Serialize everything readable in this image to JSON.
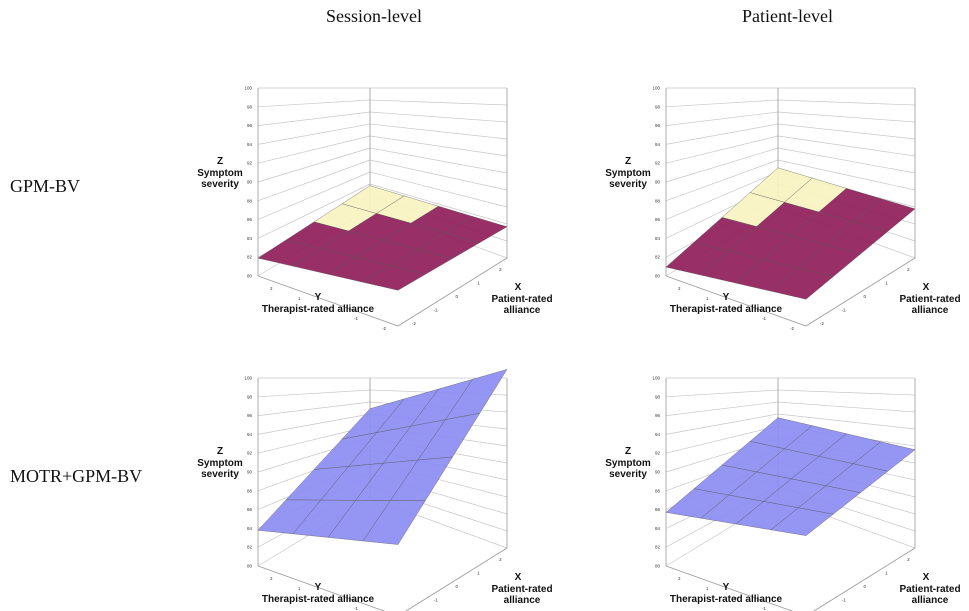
{
  "column_titles": [
    "Session-level",
    "Patient-level"
  ],
  "row_titles": [
    "GPM-BV",
    "MOTR+GPM-BV"
  ],
  "colors": {
    "burgundy": "#8f1e5a",
    "cream": "#f7f3c0",
    "blue": "#8c8cf2",
    "grid": "#c8c8c8"
  },
  "chart_data": [
    {
      "type": "surface",
      "row": "GPM-BV",
      "column": "Session-level",
      "zlabel_letter": "Z",
      "zlabel": [
        "Symptom",
        "severity"
      ],
      "xlabel_letter": "X",
      "xlabel": [
        "Patient-rated",
        "alliance"
      ],
      "ylabel_letter": "Y",
      "ylabel": "Therapist-rated alliance",
      "zlim": [
        80,
        100
      ],
      "ztick_labels": [
        "80",
        "82",
        "84",
        "86",
        "88",
        "90",
        "92",
        "94",
        "96",
        "98",
        "100"
      ],
      "xtick_labels": [
        "-2",
        "-1",
        "0",
        "1",
        "2"
      ],
      "ytick_labels": [
        "2",
        "1",
        "0",
        "-1",
        "-2"
      ],
      "surface_z_corners": {
        "near": 82,
        "right": 84,
        "far": 83.5,
        "left": 82.5
      },
      "coloring": "burgundy-cream"
    },
    {
      "type": "surface",
      "row": "GPM-BV",
      "column": "Patient-level",
      "zlabel_letter": "Z",
      "zlabel": [
        "Symptom",
        "severity"
      ],
      "xlabel_letter": "X",
      "xlabel": [
        "Patient-rated",
        "alliance"
      ],
      "ylabel_letter": "Y",
      "ylabel": "Therapist-rated alliance",
      "zlim": [
        80,
        100
      ],
      "ztick_labels": [
        "80",
        "82",
        "84",
        "86",
        "88",
        "90",
        "92",
        "94",
        "96",
        "98",
        "100"
      ],
      "xtick_labels": [
        "-2",
        "-1",
        "0",
        "1",
        "2"
      ],
      "ytick_labels": [
        "2",
        "1",
        "0",
        "-1",
        "-2"
      ],
      "surface_z_corners": {
        "near": 81,
        "right": 83,
        "far": 85.5,
        "left": 84.5
      },
      "coloring": "burgundy-cream"
    },
    {
      "type": "surface",
      "row": "MOTR+GPM-BV",
      "column": "Session-level",
      "zlabel_letter": "Z",
      "zlabel": [
        "Symptom",
        "severity"
      ],
      "xlabel_letter": "X",
      "xlabel": [
        "Patient-rated",
        "alliance"
      ],
      "ylabel_letter": "Y",
      "ylabel": "Therapist-rated alliance",
      "zlim": [
        80,
        100
      ],
      "ztick_labels": [
        "80",
        "82",
        "84",
        "86",
        "88",
        "90",
        "92",
        "94",
        "96",
        "98",
        "100"
      ],
      "xtick_labels": [
        "-2",
        "-1",
        "0",
        "1",
        "2"
      ],
      "ytick_labels": [
        "2",
        "1",
        "0",
        "-1",
        "-2"
      ],
      "surface_z_corners": {
        "near": 84,
        "right": 88,
        "far": 100,
        "left": 90
      },
      "coloring": "blue"
    },
    {
      "type": "surface",
      "row": "MOTR+GPM-BV",
      "column": "Patient-level",
      "zlabel_letter": "Z",
      "zlabel": [
        "Symptom",
        "severity"
      ],
      "xlabel_letter": "X",
      "xlabel": [
        "Patient-rated",
        "alliance"
      ],
      "ylabel_letter": "Y",
      "ylabel": "Therapist-rated alliance",
      "zlim": [
        80,
        100
      ],
      "ztick_labels": [
        "80",
        "82",
        "84",
        "86",
        "88",
        "90",
        "92",
        "94",
        "96",
        "98",
        "100"
      ],
      "xtick_labels": [
        "-2",
        "-1",
        "0",
        "1",
        "2"
      ],
      "ytick_labels": [
        "2",
        "1",
        "0",
        "-1",
        "-2"
      ],
      "surface_z_corners": {
        "near": 86,
        "right": 89,
        "far": 91,
        "left": 89
      },
      "coloring": "blue"
    }
  ]
}
